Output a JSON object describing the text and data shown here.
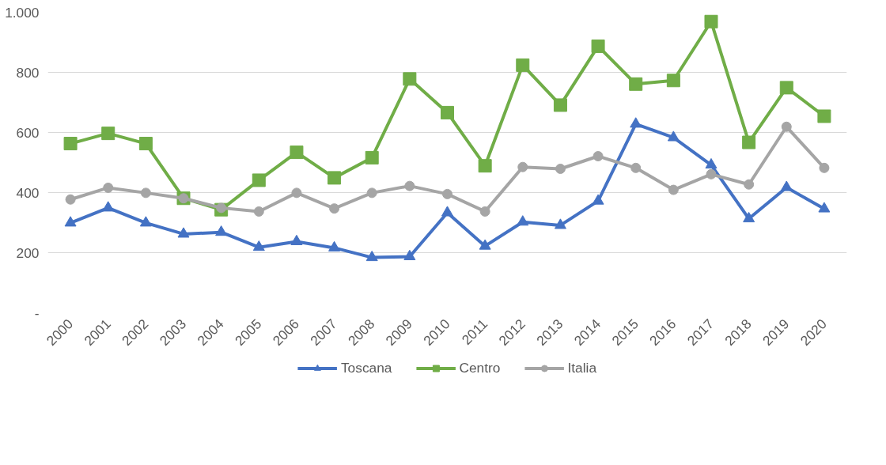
{
  "chart_data": {
    "type": "line",
    "categories": [
      "2000",
      "2001",
      "2002",
      "2003",
      "2004",
      "2005",
      "2006",
      "2007",
      "2008",
      "2009",
      "2010",
      "2011",
      "2012",
      "2013",
      "2014",
      "2015",
      "2016",
      "2017",
      "2018",
      "2019",
      "2020"
    ],
    "series": [
      {
        "name": "Toscana",
        "color": "#4472c4",
        "marker": "triangle",
        "values": [
          299,
          349,
          299,
          262,
          268,
          218,
          237,
          216,
          184,
          187,
          333,
          222,
          302,
          291,
          372,
          628,
          583,
          492,
          313,
          417,
          346
        ]
      },
      {
        "name": "Centro",
        "color": "#70ad47",
        "marker": "square",
        "values": [
          563,
          597,
          563,
          381,
          343,
          441,
          534,
          449,
          516,
          778,
          666,
          489,
          824,
          691,
          887,
          761,
          773,
          969,
          567,
          749,
          654
        ]
      },
      {
        "name": "Italia",
        "color": "#a5a5a5",
        "marker": "circle",
        "values": [
          377,
          416,
          399,
          381,
          349,
          337,
          399,
          347,
          399,
          422,
          395,
          337,
          485,
          479,
          521,
          482,
          409,
          461,
          427,
          619,
          482
        ]
      }
    ],
    "ylim": [
      0,
      1000
    ],
    "yticks": [
      {
        "value": 0,
        "label": "-"
      },
      200,
      400,
      600,
      800,
      {
        "value": 1000,
        "label": "1.000"
      }
    ],
    "grid": "y",
    "legend": "bottom",
    "line_style": "solid"
  }
}
